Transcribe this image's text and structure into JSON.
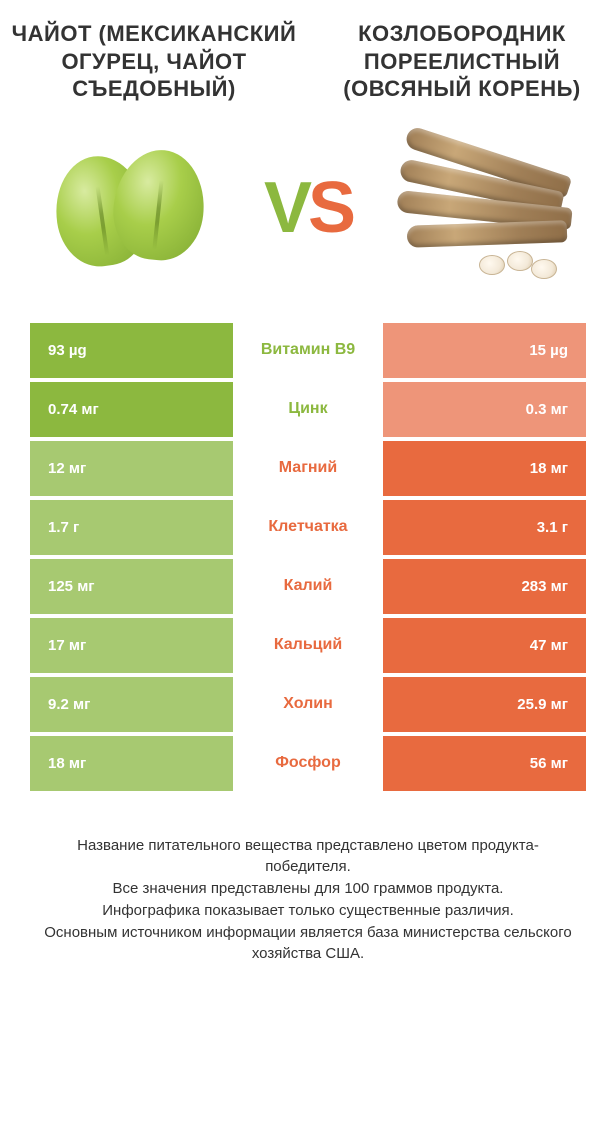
{
  "colors": {
    "green": "#8cb83f",
    "orange": "#e86a3f",
    "green_dim": "#a7c971",
    "orange_dim": "#ee9579",
    "white": "#ffffff"
  },
  "left_food": {
    "title": "ЧАЙОТ (МЕКСИКАНСКИЙ ОГУРЕЦ, ЧАЙОТ СЪЕДОБНЫЙ)"
  },
  "right_food": {
    "title": "КОЗЛОБОРОДНИК ПОРЕЕЛИСТНЫЙ (ОВСЯНЫЙ КОРЕНЬ)"
  },
  "vs": {
    "v": "V",
    "s": "S"
  },
  "rows": [
    {
      "nutrient": "Витамин B9",
      "left": "93 µg",
      "right": "15 µg",
      "winner": "left"
    },
    {
      "nutrient": "Цинк",
      "left": "0.74 мг",
      "right": "0.3 мг",
      "winner": "left"
    },
    {
      "nutrient": "Магний",
      "left": "12 мг",
      "right": "18 мг",
      "winner": "right"
    },
    {
      "nutrient": "Клетчатка",
      "left": "1.7 г",
      "right": "3.1 г",
      "winner": "right"
    },
    {
      "nutrient": "Калий",
      "left": "125 мг",
      "right": "283 мг",
      "winner": "right"
    },
    {
      "nutrient": "Кальций",
      "left": "17 мг",
      "right": "47 мг",
      "winner": "right"
    },
    {
      "nutrient": "Холин",
      "left": "9.2 мг",
      "right": "25.9 мг",
      "winner": "right"
    },
    {
      "nutrient": "Фосфор",
      "left": "18 мг",
      "right": "56 мг",
      "winner": "right"
    }
  ],
  "footer_lines": [
    "Название питательного вещества представлено цветом продукта-победителя.",
    "Все значения представлены для 100 граммов продукта.",
    "Инфографика показывает только существенные различия.",
    "Основным источником информации является база министерства сельского хозяйства США."
  ]
}
